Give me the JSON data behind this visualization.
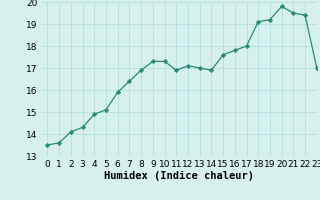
{
  "x": [
    0,
    1,
    2,
    3,
    4,
    5,
    6,
    7,
    8,
    9,
    10,
    11,
    12,
    13,
    14,
    15,
    16,
    17,
    18,
    19,
    20,
    21,
    22,
    23
  ],
  "y": [
    13.5,
    13.6,
    14.1,
    14.3,
    14.9,
    15.1,
    15.9,
    16.4,
    16.9,
    17.3,
    17.3,
    16.9,
    17.1,
    17.0,
    16.9,
    17.6,
    17.8,
    18.0,
    19.1,
    19.2,
    19.8,
    19.5,
    19.4,
    17.0
  ],
  "xlabel": "Humidex (Indice chaleur)",
  "ylim": [
    13,
    20
  ],
  "xlim": [
    -0.5,
    23
  ],
  "yticks": [
    13,
    14,
    15,
    16,
    17,
    18,
    19,
    20
  ],
  "xticks": [
    0,
    1,
    2,
    3,
    4,
    5,
    6,
    7,
    8,
    9,
    10,
    11,
    12,
    13,
    14,
    15,
    16,
    17,
    18,
    19,
    20,
    21,
    22,
    23
  ],
  "line_color": "#2a8a72",
  "marker_color": "#2a8a72",
  "bg_color": "#d6f0ee",
  "grid_color": "#aadcda",
  "tick_fontsize": 6.5,
  "xlabel_fontsize": 7.5
}
